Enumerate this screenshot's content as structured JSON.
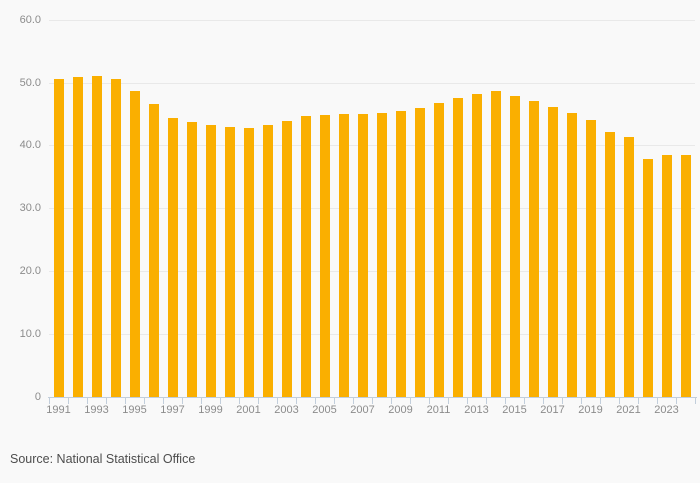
{
  "source": {
    "label": "Source: National Statistical Office"
  },
  "colors": {
    "background": "#f9f9f9",
    "bar": "#FAAF00",
    "gridline": "#e9e9e9",
    "axis_line": "#c2cedb",
    "tick_label": "#8c8c8c",
    "source_text": "#4d4d4d"
  },
  "chart_data": {
    "type": "bar",
    "title": "",
    "xlabel": "",
    "ylabel": "",
    "categories": [
      1991,
      1992,
      1993,
      1994,
      1995,
      1996,
      1997,
      1998,
      1999,
      2000,
      2001,
      2002,
      2003,
      2004,
      2005,
      2006,
      2007,
      2008,
      2009,
      2010,
      2011,
      2012,
      2013,
      2014,
      2015,
      2016,
      2017,
      2018,
      2019,
      2020,
      2021,
      2022,
      2023,
      2024
    ],
    "values": [
      50.6,
      50.8,
      51.1,
      50.6,
      48.7,
      46.6,
      44.4,
      43.7,
      43.2,
      42.9,
      42.8,
      43.2,
      43.9,
      44.7,
      44.9,
      45.0,
      45.0,
      45.1,
      45.4,
      46.0,
      46.7,
      47.5,
      48.2,
      48.6,
      47.8,
      47.0,
      46.1,
      45.1,
      44.0,
      42.2,
      41.4,
      37.9,
      38.5,
      38.5
    ],
    "ylim": [
      0,
      60
    ],
    "yticks": [
      0,
      10,
      20,
      30,
      40,
      50,
      60
    ],
    "ytick_labels": [
      "0",
      "10.0",
      "20.0",
      "30.0",
      "40.0",
      "50.0",
      "60.0"
    ],
    "xtick_labels": [
      "1991",
      "1993",
      "1995",
      "1997",
      "1999",
      "2001",
      "2003",
      "2005",
      "2007",
      "2009",
      "2011",
      "2013",
      "2015",
      "2017",
      "2019",
      "2021",
      "2023"
    ],
    "xtick_label_step": 2,
    "grid": "horizontal",
    "legend": "none"
  }
}
